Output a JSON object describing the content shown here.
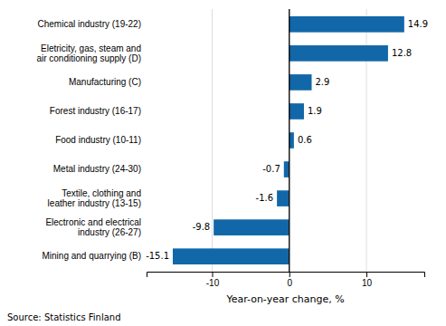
{
  "chart_data": {
    "type": "bar",
    "orientation": "horizontal",
    "categories": [
      "Mining and quarrying (B)",
      "Electronic and electrical\nindustry (26-27)",
      "Textile, clothing and\nleather industry (13-15)",
      "Metal industry (24-30)",
      "Food industry (10-11)",
      "Forest industry (16-17)",
      "Manufacturing (C)",
      "Eletricity, gas, steam and\nair conditioning supply (D)",
      "Chemical industry (19-22)"
    ],
    "values": [
      -15.1,
      -9.8,
      -1.6,
      -0.7,
      0.6,
      1.9,
      2.9,
      12.8,
      14.9
    ],
    "color": "#1167a8",
    "xlabel": "Year-on-year change, %",
    "xlim": [
      -18.5,
      17.5
    ],
    "xticks": [
      -10,
      0,
      10
    ],
    "grid": true,
    "data_labels": true,
    "annotations": [
      "Source: Statistics Finland"
    ]
  }
}
